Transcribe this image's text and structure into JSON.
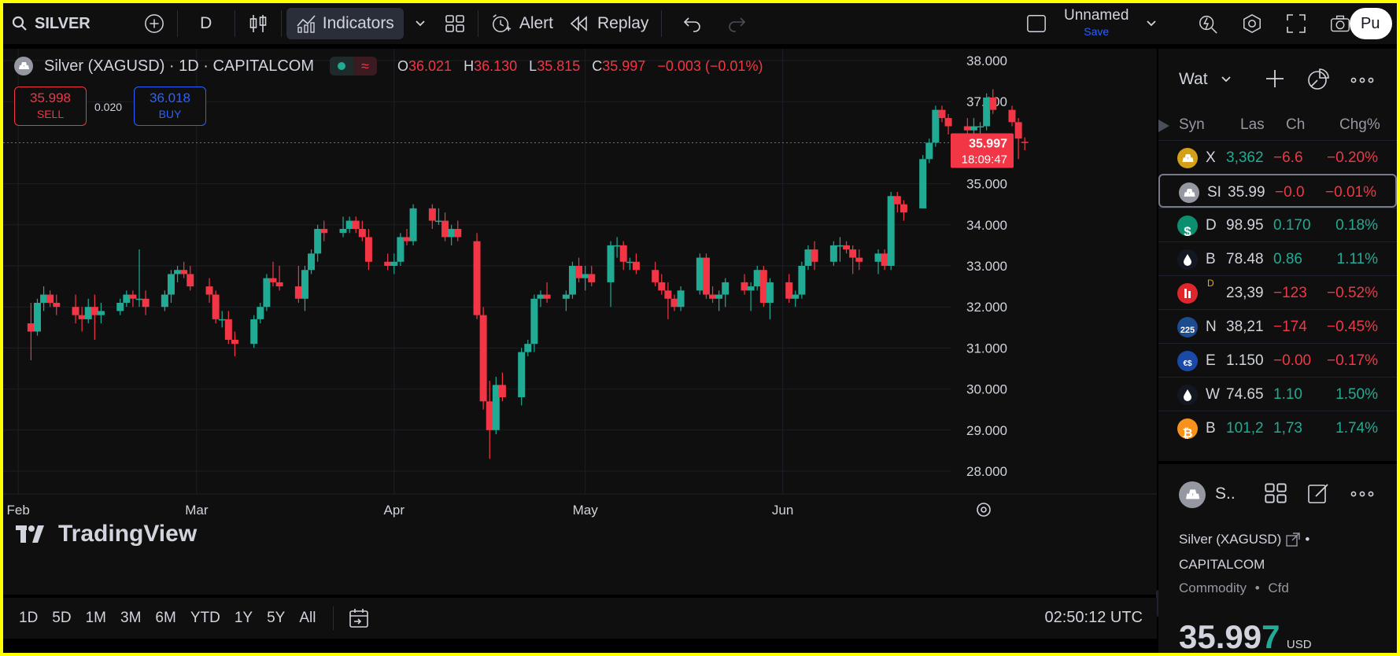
{
  "toolbar": {
    "symbol": "SILVER",
    "interval": "D",
    "indicators_label": "Indicators",
    "alert_label": "Alert",
    "replay_label": "Replay",
    "layout_name": "Unnamed",
    "layout_save": "Save",
    "publish_label": "Pu"
  },
  "legend": {
    "title": "Silver (XAGUSD) · 1D · CAPITALCOM",
    "o_label": "O",
    "o_value": "36.021",
    "h_label": "H",
    "h_value": "36.130",
    "l_label": "L",
    "l_value": "35.815",
    "c_label": "C",
    "c_value": "35.997",
    "change": "−0.003 (−0.01%)",
    "wave_icon": "≈"
  },
  "trade": {
    "sell_price": "35.998",
    "sell_label": "SELL",
    "spread": "0.020",
    "buy_price": "36.018",
    "buy_label": "BUY"
  },
  "price_tag": {
    "price": "35.997",
    "countdown": "18:09:47"
  },
  "watermark": "TradingView",
  "range_buttons": [
    "1D",
    "5D",
    "1M",
    "3M",
    "6M",
    "YTD",
    "1Y",
    "5Y",
    "All"
  ],
  "clock": "02:50:12 UTC",
  "colors": {
    "up": "#22ab94",
    "down": "#f23645",
    "background": "#0f0f0f",
    "grid": "#1c1f26",
    "accent": "#2962ff"
  },
  "chart_data": {
    "type": "candlestick",
    "title": "Silver (XAGUSD) · 1D · CAPITALCOM",
    "xlabel": "",
    "ylabel": "",
    "ylim": [
      27.5,
      38.5
    ],
    "y_ticks": [
      "38.000",
      "37.000",
      "35.000",
      "34.000",
      "33.000",
      "32.000",
      "31.000",
      "30.000",
      "29.000",
      "28.000"
    ],
    "y_tick_values": [
      38,
      37,
      35,
      34,
      33,
      32,
      31,
      30,
      29,
      28
    ],
    "x_ticks": [
      "Feb",
      "Mar",
      "Apr",
      "May",
      "Jun"
    ],
    "x_tick_dates": [
      "2025-02-01",
      "2025-03-01",
      "2025-04-01",
      "2025-05-01",
      "2025-06-01"
    ],
    "last_price": 35.997,
    "grid": true,
    "candles": [
      [
        "2025-02-03",
        31.6,
        32.1,
        30.7,
        31.4
      ],
      [
        "2025-02-04",
        31.4,
        32.2,
        31.3,
        32.1
      ],
      [
        "2025-02-05",
        32.1,
        32.5,
        31.9,
        32.3
      ],
      [
        "2025-02-06",
        32.3,
        32.4,
        32.0,
        32.1
      ],
      [
        "2025-02-07",
        32.1,
        32.3,
        31.8,
        32.0
      ],
      [
        "2025-02-10",
        32.0,
        32.3,
        31.6,
        31.8
      ],
      [
        "2025-02-11",
        31.8,
        32.0,
        31.4,
        31.7
      ],
      [
        "2025-02-12",
        31.7,
        32.2,
        31.6,
        32.0
      ],
      [
        "2025-02-13",
        32.0,
        32.3,
        31.2,
        31.8
      ],
      [
        "2025-02-14",
        31.8,
        32.1,
        31.6,
        31.9
      ],
      [
        "2025-02-17",
        31.9,
        32.2,
        31.8,
        32.1
      ],
      [
        "2025-02-18",
        32.1,
        32.4,
        32.0,
        32.3
      ],
      [
        "2025-02-19",
        32.3,
        32.4,
        32.0,
        32.2
      ],
      [
        "2025-02-20",
        32.2,
        33.4,
        32.0,
        32.2
      ],
      [
        "2025-02-21",
        32.2,
        32.4,
        31.8,
        32.0
      ],
      [
        "2025-02-24",
        32.0,
        32.4,
        31.9,
        32.3
      ],
      [
        "2025-02-25",
        32.3,
        32.9,
        32.1,
        32.8
      ],
      [
        "2025-02-26",
        32.8,
        33.0,
        32.6,
        32.9
      ],
      [
        "2025-02-27",
        32.9,
        33.1,
        32.7,
        32.8
      ],
      [
        "2025-02-28",
        32.8,
        33.0,
        32.4,
        32.5
      ],
      [
        "2025-03-03",
        32.5,
        32.7,
        32.1,
        32.3
      ],
      [
        "2025-03-04",
        32.3,
        32.4,
        31.6,
        31.7
      ],
      [
        "2025-03-05",
        31.7,
        31.9,
        31.5,
        31.7
      ],
      [
        "2025-03-06",
        31.7,
        31.9,
        31.1,
        31.2
      ],
      [
        "2025-03-07",
        31.2,
        31.4,
        30.8,
        31.1
      ],
      [
        "2025-03-10",
        31.1,
        31.8,
        31.0,
        31.7
      ],
      [
        "2025-03-11",
        31.7,
        32.1,
        31.6,
        32.0
      ],
      [
        "2025-03-12",
        32.0,
        32.8,
        31.9,
        32.7
      ],
      [
        "2025-03-13",
        32.7,
        33.1,
        32.5,
        32.6
      ],
      [
        "2025-03-14",
        32.6,
        33.0,
        32.4,
        32.5
      ],
      [
        "2025-03-17",
        32.5,
        33.0,
        32.1,
        32.2
      ],
      [
        "2025-03-18",
        32.2,
        33.0,
        31.9,
        32.9
      ],
      [
        "2025-03-19",
        32.9,
        33.4,
        32.8,
        33.3
      ],
      [
        "2025-03-20",
        33.3,
        34.0,
        33.1,
        33.9
      ],
      [
        "2025-03-21",
        33.9,
        34.1,
        33.6,
        33.8
      ],
      [
        "2025-03-24",
        33.8,
        34.2,
        33.7,
        33.9
      ],
      [
        "2025-03-25",
        33.9,
        34.2,
        33.8,
        34.1
      ],
      [
        "2025-03-26",
        34.1,
        34.2,
        33.8,
        33.9
      ],
      [
        "2025-03-27",
        33.9,
        34.1,
        33.6,
        33.7
      ],
      [
        "2025-03-28",
        33.7,
        33.9,
        32.9,
        33.1
      ],
      [
        "2025-03-31",
        33.1,
        33.3,
        32.9,
        33.0
      ],
      [
        "2025-04-01",
        33.0,
        33.3,
        32.8,
        33.1
      ],
      [
        "2025-04-02",
        33.1,
        33.8,
        33.0,
        33.7
      ],
      [
        "2025-04-03",
        33.7,
        33.9,
        33.5,
        33.6
      ],
      [
        "2025-04-04",
        33.6,
        34.5,
        33.5,
        34.4
      ],
      [
        "2025-04-07",
        34.4,
        34.5,
        33.9,
        34.1
      ],
      [
        "2025-04-08",
        34.1,
        34.4,
        34.0,
        34.1
      ],
      [
        "2025-04-09",
        34.1,
        34.3,
        33.6,
        33.7
      ],
      [
        "2025-04-10",
        33.7,
        34.0,
        33.5,
        33.9
      ],
      [
        "2025-04-11",
        33.9,
        34.1,
        33.6,
        33.7
      ],
      [
        "2025-04-14",
        33.6,
        33.8,
        31.7,
        31.8
      ],
      [
        "2025-04-15",
        31.8,
        32.0,
        29.5,
        29.7
      ],
      [
        "2025-04-16",
        29.7,
        30.2,
        28.3,
        29.0
      ],
      [
        "2025-04-17",
        29.0,
        30.3,
        28.9,
        30.1
      ],
      [
        "2025-04-18",
        30.1,
        30.4,
        29.7,
        29.8
      ],
      [
        "2025-04-21",
        29.8,
        31.0,
        29.6,
        30.9
      ],
      [
        "2025-04-22",
        30.9,
        31.2,
        30.8,
        31.1
      ],
      [
        "2025-04-23",
        31.1,
        32.3,
        30.9,
        32.2
      ],
      [
        "2025-04-24",
        32.2,
        32.4,
        32.0,
        32.3
      ],
      [
        "2025-04-25",
        32.3,
        32.6,
        32.1,
        32.2
      ],
      [
        "2025-04-28",
        32.2,
        32.4,
        31.9,
        32.3
      ],
      [
        "2025-04-29",
        32.3,
        33.1,
        32.2,
        33.0
      ],
      [
        "2025-04-30",
        33.0,
        33.2,
        32.6,
        32.7
      ],
      [
        "2025-05-01",
        32.7,
        33.0,
        32.4,
        32.8
      ],
      [
        "2025-05-02",
        32.8,
        33.0,
        32.5,
        32.6
      ],
      [
        "2025-05-05",
        32.6,
        33.6,
        32.0,
        33.5
      ],
      [
        "2025-05-06",
        33.5,
        33.7,
        33.2,
        33.5
      ],
      [
        "2025-05-07",
        33.5,
        33.6,
        32.9,
        33.1
      ],
      [
        "2025-05-08",
        33.1,
        33.2,
        32.9,
        33.1
      ],
      [
        "2025-05-09",
        33.1,
        33.3,
        32.8,
        32.9
      ],
      [
        "2025-05-12",
        32.9,
        33.1,
        32.5,
        32.6
      ],
      [
        "2025-05-13",
        32.6,
        32.8,
        32.3,
        32.4
      ],
      [
        "2025-05-14",
        32.4,
        32.6,
        31.7,
        32.2
      ],
      [
        "2025-05-15",
        32.2,
        32.3,
        31.9,
        32.0
      ],
      [
        "2025-05-16",
        32.0,
        32.5,
        31.9,
        32.4
      ],
      [
        "2025-05-19",
        32.4,
        33.3,
        32.3,
        33.2
      ],
      [
        "2025-05-20",
        33.2,
        33.3,
        32.2,
        32.3
      ],
      [
        "2025-05-21",
        32.3,
        32.5,
        32.1,
        32.2
      ],
      [
        "2025-05-22",
        32.2,
        32.4,
        31.9,
        32.3
      ],
      [
        "2025-05-23",
        32.3,
        32.7,
        32.0,
        32.6
      ],
      [
        "2025-05-26",
        32.6,
        32.8,
        32.3,
        32.4
      ],
      [
        "2025-05-27",
        32.4,
        32.6,
        31.9,
        32.5
      ],
      [
        "2025-05-28",
        32.5,
        33.0,
        32.4,
        32.9
      ],
      [
        "2025-05-29",
        32.9,
        33.0,
        32.0,
        32.1
      ],
      [
        "2025-05-30",
        32.1,
        32.7,
        31.7,
        32.6
      ],
      [
        "2025-06-02",
        32.6,
        32.8,
        32.1,
        32.2
      ],
      [
        "2025-06-03",
        32.2,
        32.4,
        32.0,
        32.3
      ],
      [
        "2025-06-04",
        32.3,
        33.1,
        32.2,
        33.0
      ],
      [
        "2025-06-05",
        33.0,
        33.5,
        32.9,
        33.4
      ],
      [
        "2025-06-06",
        33.4,
        33.6,
        32.9,
        33.1
      ],
      [
        "2025-06-09",
        33.1,
        33.6,
        33.0,
        33.5
      ],
      [
        "2025-06-10",
        33.5,
        33.7,
        33.1,
        33.5
      ],
      [
        "2025-06-11",
        33.5,
        33.6,
        33.3,
        33.4
      ],
      [
        "2025-06-12",
        33.4,
        33.5,
        32.8,
        33.2
      ],
      [
        "2025-06-13",
        33.2,
        33.4,
        32.9,
        33.1
      ],
      [
        "2025-06-16",
        33.1,
        33.4,
        32.8,
        33.3
      ],
      [
        "2025-06-17",
        33.3,
        33.4,
        32.9,
        33.0
      ],
      [
        "2025-06-18",
        33.0,
        34.8,
        32.9,
        34.7
      ],
      [
        "2025-06-19",
        34.7,
        34.8,
        34.3,
        34.5
      ],
      [
        "2025-06-20",
        34.5,
        34.6,
        34.1,
        34.3
      ],
      [
        "2025-06-23",
        34.4,
        35.7,
        34.4,
        35.6
      ],
      [
        "2025-06-24",
        35.6,
        36.1,
        35.5,
        36.0
      ],
      [
        "2025-06-25",
        36.0,
        36.9,
        35.9,
        36.8
      ],
      [
        "2025-06-26",
        36.8,
        36.9,
        36.5,
        36.6
      ],
      [
        "2025-06-27",
        36.6,
        36.7,
        36.2,
        36.4
      ],
      [
        "2025-06-30",
        36.4,
        36.6,
        35.5,
        36.3
      ],
      [
        "2025-07-01",
        36.3,
        36.6,
        36.2,
        36.4
      ],
      [
        "2025-07-02",
        36.4,
        36.5,
        36.1,
        36.4
      ],
      [
        "2025-07-03",
        36.4,
        37.2,
        36.3,
        37.1
      ],
      [
        "2025-07-04",
        37.1,
        37.3,
        36.7,
        36.8
      ],
      [
        "2025-07-07",
        36.8,
        36.9,
        36.4,
        36.5
      ],
      [
        "2025-07-08",
        36.5,
        36.6,
        35.6,
        36.1
      ],
      [
        "2025-07-09",
        36.021,
        36.13,
        35.815,
        35.997
      ]
    ]
  },
  "watchlist": {
    "title": "Wat",
    "columns": [
      "Syn",
      "Las",
      "Ch",
      "Chg%"
    ],
    "rows": [
      {
        "icon": "gold",
        "symbol": "X",
        "last": "3,362",
        "chg": "−6.6",
        "chgp": "−0.20%",
        "dir": "neg",
        "last_dir": "pos",
        "color": "#d4a017"
      },
      {
        "icon": "silver",
        "symbol": "SI",
        "last": "35.99",
        "chg": "−0.0",
        "chgp": "−0.01%",
        "dir": "neg",
        "last_dir": "neutral",
        "color": "#9598a1",
        "selected": true
      },
      {
        "icon": "dollar",
        "symbol": "D",
        "last": "98.95",
        "chg": "0.170",
        "chgp": "0.18%",
        "dir": "pos",
        "last_dir": "neutral",
        "color": "#0b8f6e"
      },
      {
        "icon": "drop",
        "symbol": "B",
        "last": "78.48",
        "chg": "0.86",
        "chgp": "1.11%",
        "dir": "pos",
        "last_dir": "neutral",
        "color": "#131722"
      },
      {
        "icon": "dow",
        "symbol": "",
        "last": "23,39",
        "chg": "−123",
        "chgp": "−0.52%",
        "dir": "neg",
        "last_dir": "neutral",
        "color": "#e0262b",
        "flag": "D"
      },
      {
        "icon": "nikkei",
        "symbol": "N",
        "last": "38,21",
        "chg": "−174",
        "chgp": "−0.45%",
        "dir": "neg",
        "last_dir": "neutral",
        "color": "#1c4b8f"
      },
      {
        "icon": "eurusd",
        "symbol": "E",
        "last": "1.150",
        "chg": "−0.00",
        "chgp": "−0.17%",
        "dir": "neg",
        "last_dir": "neutral",
        "color": "#1a4aa8"
      },
      {
        "icon": "drop",
        "symbol": "W",
        "last": "74.65",
        "chg": "1.10",
        "chgp": "1.50%",
        "dir": "pos",
        "last_dir": "neutral",
        "color": "#131722"
      },
      {
        "icon": "bitcoin",
        "symbol": "B",
        "last": "101,2",
        "chg": "1,73",
        "chgp": "1.74%",
        "dir": "pos",
        "last_dir": "pos",
        "color": "#f7931a"
      }
    ]
  },
  "details": {
    "short_symbol": "S..",
    "name": "Silver (XAGUSD)",
    "exchange": "CAPITALCOM",
    "type": "Commodity",
    "subtype": "Cfd",
    "price_main": "35.99",
    "price_last_digit": "7",
    "currency": "USD"
  }
}
